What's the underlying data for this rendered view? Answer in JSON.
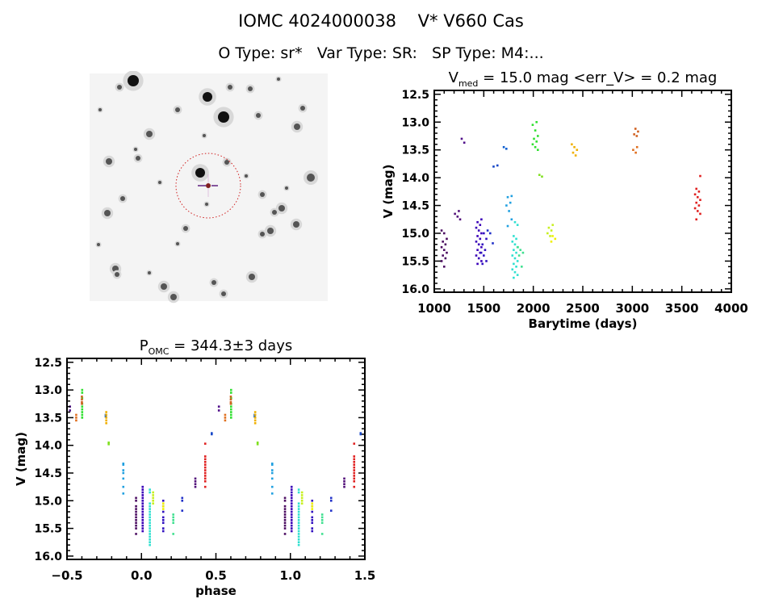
{
  "header": {
    "title": "IOMC 4024000038    V* V660 Cas",
    "subtitle": "O Type: sr*   Var Type: SR:   SP Type: M4:..."
  },
  "chart_data": [
    {
      "type": "scatter",
      "title_main": "V",
      "title_sub": "med",
      "title_rest": " = 15.0 mag <err_V> = 0.2 mag",
      "xlabel": "Barytime (days)",
      "ylabel": "V (mag)",
      "xlim": [
        1000,
        4000
      ],
      "ylim": [
        12.43,
        16.06
      ],
      "y_inverted": true,
      "xticks": [
        "1000",
        "1500",
        "2000",
        "2500",
        "3000",
        "3500",
        "4000"
      ],
      "yticks": [
        "12.5",
        "13.0",
        "13.5",
        "14.0",
        "14.5",
        "15.0",
        "15.5",
        "16.0"
      ],
      "clusters": [
        {
          "t": 1100,
          "color": "#4a0a60",
          "phase": -0.02,
          "mags": [
            14.95,
            15.0,
            15.1,
            15.15,
            15.2,
            15.25,
            15.3,
            15.35,
            15.4,
            15.45,
            15.5,
            15.6
          ]
        },
        {
          "t": 1235,
          "color": "#52107a",
          "phase": 0.37,
          "mags": [
            14.6,
            14.65,
            14.7,
            14.75
          ]
        },
        {
          "t": 1290,
          "color": "#50108a",
          "phase": 0.52,
          "mags": [
            13.3,
            13.37
          ]
        },
        {
          "t": 1450,
          "color": "#3a00b8",
          "phase": 0.0,
          "mags": [
            14.75,
            14.8,
            14.85,
            14.9,
            14.95,
            15.0,
            15.05,
            15.1,
            15.15,
            15.2,
            15.25,
            15.3,
            15.35,
            15.4,
            15.45,
            15.5,
            15.55
          ]
        },
        {
          "t": 1500,
          "color": "#3010c0",
          "phase": 0.13,
          "mags": [
            15.0,
            15.1,
            15.2,
            15.3,
            15.35,
            15.4,
            15.5,
            15.55
          ]
        },
        {
          "t": 1565,
          "color": "#2030c8",
          "phase": 0.29,
          "mags": [
            14.95,
            15.0,
            15.18
          ]
        },
        {
          "t": 1625,
          "color": "#1848c8",
          "phase": 0.48,
          "mags": [
            13.78,
            13.8
          ]
        },
        {
          "t": 1715,
          "color": "#1060d0",
          "phase": 0.76,
          "mags": [
            13.45,
            13.48
          ]
        },
        {
          "t": 1755,
          "color": "#20a0e0",
          "phase": 0.87,
          "mags": [
            14.33,
            14.35,
            14.45,
            14.5,
            14.6,
            14.75,
            14.87
          ]
        },
        {
          "t": 1815,
          "color": "#30e0d0",
          "phase": 0.04,
          "mags": [
            14.8,
            14.85,
            15.05,
            15.1,
            15.15,
            15.2,
            15.25,
            15.3,
            15.35,
            15.4,
            15.45,
            15.5,
            15.55,
            15.6,
            15.65,
            15.7,
            15.75,
            15.8
          ]
        },
        {
          "t": 1870,
          "color": "#40e090",
          "phase": 0.23,
          "mags": [
            15.25,
            15.3,
            15.35,
            15.4,
            15.6
          ]
        },
        {
          "t": 2020,
          "color": "#30e030",
          "phase": 0.61,
          "mags": [
            13.0,
            13.05,
            13.15,
            13.25,
            13.3,
            13.35,
            13.4,
            13.45,
            13.5
          ]
        },
        {
          "t": 2075,
          "color": "#80e020",
          "phase": 0.78,
          "mags": [
            13.95,
            13.98
          ]
        },
        {
          "t": 2170,
          "color": "#c8f020",
          "phase": 0.07,
          "mags": [
            14.85,
            14.9,
            14.95,
            15.0,
            15.05
          ]
        },
        {
          "t": 2195,
          "color": "#f0f000",
          "phase": 0.13,
          "mags": [
            15.05,
            15.1,
            15.15
          ]
        },
        {
          "t": 2415,
          "color": "#f0b000",
          "phase": 0.78,
          "mags": [
            13.4,
            13.45,
            13.5,
            13.55,
            13.6
          ]
        },
        {
          "t": 3035,
          "color": "#e07020",
          "phase": 0.57,
          "mags": [
            13.45,
            13.5,
            13.55
          ]
        },
        {
          "t": 3045,
          "color": "#d06020",
          "phase": 0.6,
          "mags": [
            13.12,
            13.17,
            13.22,
            13.25
          ]
        },
        {
          "t": 3660,
          "color": "#e02020",
          "phase": 0.42,
          "mags": [
            13.97,
            14.2,
            14.25,
            14.3,
            14.35,
            14.4,
            14.45,
            14.5,
            14.55,
            14.6,
            14.65,
            14.75
          ]
        }
      ]
    },
    {
      "type": "scatter",
      "title_main": "P",
      "title_sub": "OMC",
      "title_rest": " = 344.3±3 days",
      "xlabel": "phase",
      "ylabel": "V (mag)",
      "xlim": [
        -0.5,
        1.5
      ],
      "ylim": [
        12.43,
        16.06
      ],
      "y_inverted": true,
      "xticks": [
        "−0.5",
        "0.0",
        "0.5",
        "1.0",
        "1.5"
      ],
      "yticks": [
        "12.5",
        "13.0",
        "13.5",
        "14.0",
        "14.5",
        "15.0",
        "15.5",
        "16.0"
      ],
      "period_days": 344.3,
      "period_err_days": 3
    }
  ]
}
